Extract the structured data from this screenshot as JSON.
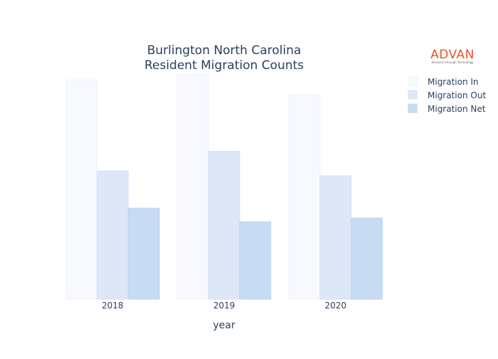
{
  "chart_data": {
    "type": "bar",
    "title": [
      "Burlington North Carolina",
      "Resident Migration Counts"
    ],
    "xlabel": "year",
    "ylabel": "",
    "categories": [
      "2018",
      "2019",
      "2020"
    ],
    "series": [
      {
        "name": "Migration In",
        "values": [
          11200,
          11500,
          10450
        ],
        "color": "#f7f9fe",
        "stroke": "#eef2fb"
      },
      {
        "name": "Migration Out",
        "values": [
          6550,
          7550,
          6300
        ],
        "color": "#dde7f8",
        "stroke": "#d6e1f5"
      },
      {
        "name": "Migration Net",
        "values": [
          4650,
          3950,
          4150
        ],
        "color": "#c7dbf2",
        "stroke": "#bfd4ee"
      }
    ],
    "ylim": [
      0,
      11500
    ],
    "y_axis_visible": false,
    "grid": false,
    "legend_position": "top-right"
  },
  "logo": {
    "name": "ADVAN",
    "tagline": "Research through Technology",
    "color": "#e8542a"
  }
}
